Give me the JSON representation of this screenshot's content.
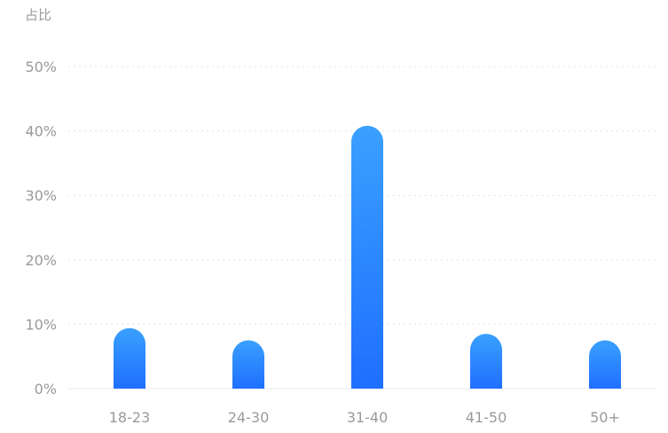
{
  "chart_data": {
    "type": "bar",
    "ylabel": "占比",
    "xlabel": "",
    "categories": [
      "18-23",
      "24-30",
      "31-40",
      "41-50",
      "50+"
    ],
    "values": [
      9.4,
      7.5,
      40.8,
      8.5,
      7.5
    ],
    "ylim": [
      0,
      50
    ],
    "yticks": [
      {
        "value": 0,
        "label": "0%"
      },
      {
        "value": 10,
        "label": "10%"
      },
      {
        "value": 20,
        "label": "20%"
      },
      {
        "value": 30,
        "label": "30%"
      },
      {
        "value": 40,
        "label": "40%"
      },
      {
        "value": 50,
        "label": "50%"
      }
    ],
    "grid": true,
    "bar_color_top": "#3aa0ff",
    "bar_color_bottom": "#1f6fff",
    "axis_text_color": "#9a9a9a"
  }
}
